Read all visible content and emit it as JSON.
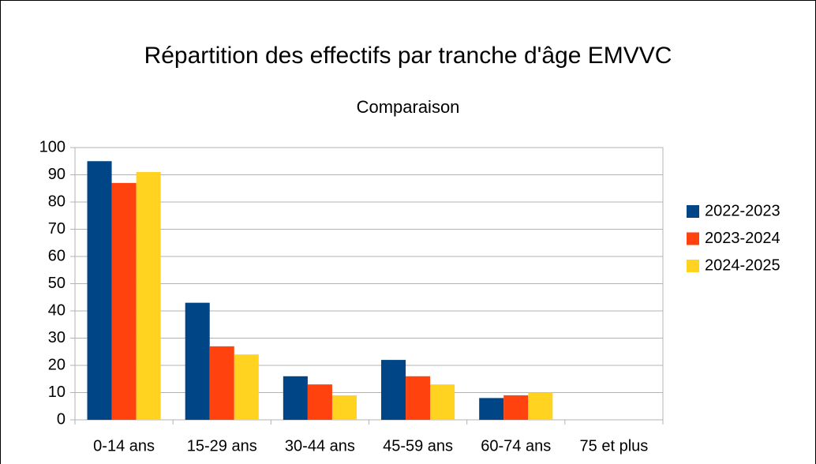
{
  "chart_data": {
    "type": "bar",
    "title": "Répartition des effectifs par tranche d'âge EMVVC",
    "subtitle": "Comparaison",
    "categories": [
      "0-14 ans",
      "15-29 ans",
      "30-44 ans",
      "45-59 ans",
      "60-74 ans",
      "75 et plus"
    ],
    "series": [
      {
        "name": "2022-2023",
        "color": "#004586",
        "values": [
          95,
          43,
          16,
          22,
          8,
          0
        ]
      },
      {
        "name": "2023-2024",
        "color": "#ff420e",
        "values": [
          87,
          27,
          13,
          16,
          9,
          0
        ]
      },
      {
        "name": "2024-2025",
        "color": "#ffd320",
        "values": [
          91,
          24,
          9,
          13,
          10,
          0
        ]
      }
    ],
    "ylim": [
      0,
      100
    ],
    "yticks": [
      0,
      10,
      20,
      30,
      40,
      50,
      60,
      70,
      80,
      90,
      100
    ],
    "grid": true,
    "legend": "right"
  }
}
